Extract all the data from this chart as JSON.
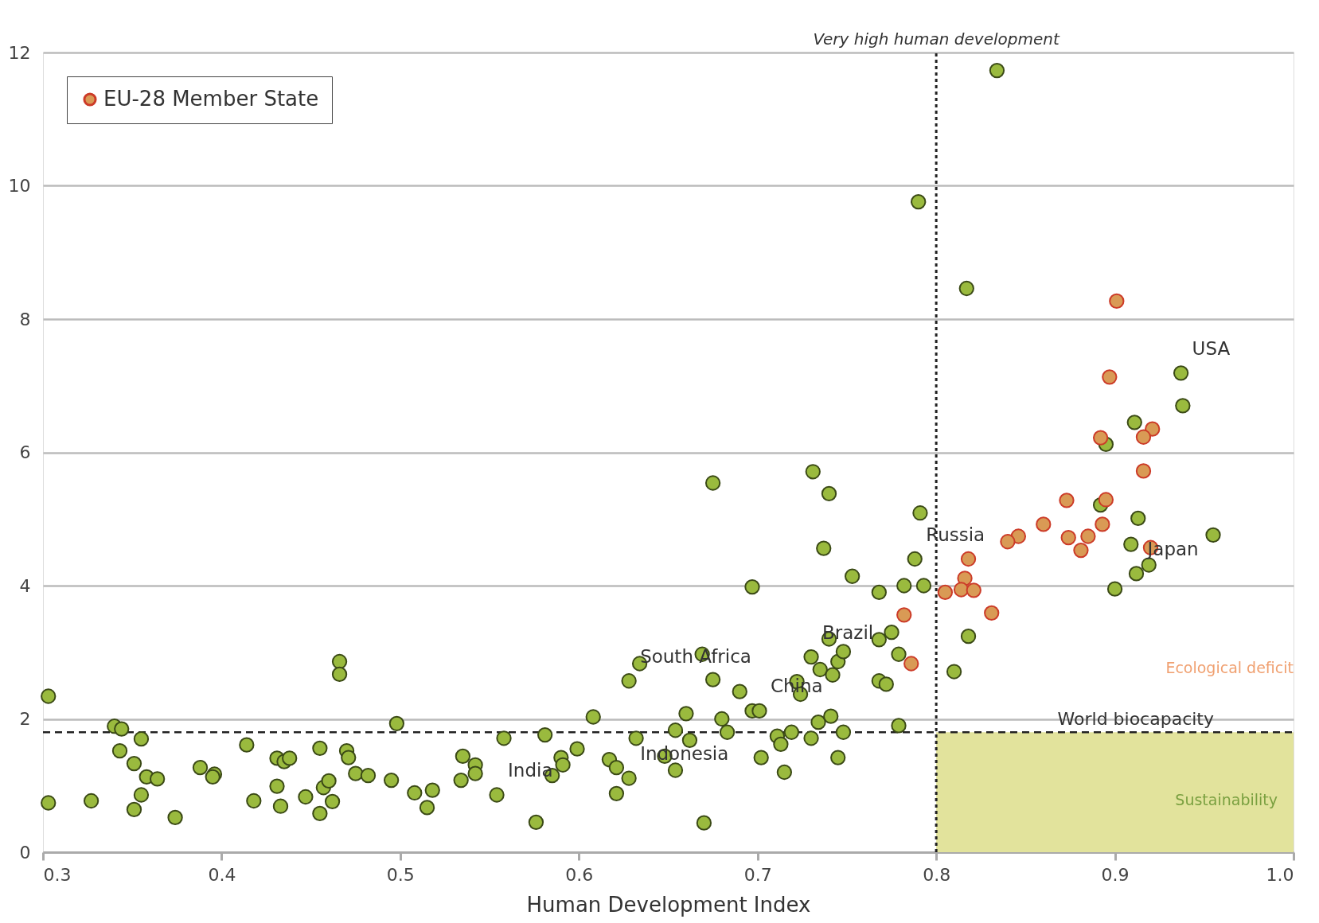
{
  "chart_data": {
    "type": "scatter",
    "xlabel": "Human Development Index",
    "xlim": [
      0.3,
      1.0
    ],
    "ylim": [
      0,
      12
    ],
    "xticks": [
      0.3,
      0.4,
      0.5,
      0.6,
      0.7,
      0.8,
      0.9,
      {
        "value": 1.0,
        "label": "1.0"
      }
    ],
    "yticks": [
      0,
      2,
      4,
      6,
      8,
      10,
      12
    ],
    "grid": "y",
    "legend": "top left",
    "marker": "circle",
    "series": [
      {
        "color": "#9aba3e",
        "x": [
          0.303,
          0.303,
          0.327,
          0.34,
          0.344,
          0.355,
          0.343,
          0.351,
          0.358,
          0.364,
          0.355,
          0.351,
          0.374,
          0.388,
          0.396,
          0.395,
          0.414,
          0.418,
          0.431,
          0.435,
          0.438,
          0.431,
          0.433,
          0.447,
          0.455,
          0.457,
          0.46,
          0.462,
          0.455,
          0.47,
          0.471,
          0.466,
          0.466,
          0.475,
          0.482,
          0.495,
          0.498,
          0.508,
          0.515,
          0.518,
          0.535,
          0.542,
          0.542,
          0.534,
          0.554,
          0.558,
          0.576,
          0.581,
          0.59,
          0.591,
          0.585,
          0.599,
          0.608,
          0.617,
          0.621,
          0.628,
          0.621,
          0.628,
          0.634,
          0.632,
          0.648,
          0.654,
          0.654,
          0.66,
          0.662,
          0.67,
          0.669,
          0.675,
          0.68,
          0.683,
          0.69,
          0.697,
          0.701,
          0.702,
          0.697,
          0.711,
          0.713,
          0.719,
          0.715,
          0.722,
          0.724,
          0.73,
          0.735,
          0.742,
          0.745,
          0.74,
          0.748,
          0.73,
          0.734,
          0.741,
          0.748,
          0.745,
          0.753,
          0.731,
          0.74,
          0.737,
          0.675,
          0.768,
          0.782,
          0.793,
          0.788,
          0.791,
          0.768,
          0.775,
          0.779,
          0.768,
          0.772,
          0.779,
          0.79,
          0.834,
          0.817,
          0.818,
          0.81,
          0.937,
          0.938,
          0.911,
          0.895,
          0.913,
          0.955,
          0.892,
          0.909,
          0.919,
          0.912,
          0.9
        ],
        "values": [
          2.34,
          0.74,
          0.77,
          1.89,
          1.85,
          1.7,
          1.52,
          1.33,
          1.13,
          1.1,
          0.86,
          0.64,
          0.52,
          1.27,
          1.17,
          1.13,
          1.61,
          0.77,
          1.41,
          1.36,
          1.41,
          0.99,
          0.69,
          0.83,
          1.56,
          0.97,
          1.07,
          0.76,
          0.58,
          1.52,
          1.42,
          2.86,
          2.67,
          1.18,
          1.15,
          1.08,
          1.93,
          0.89,
          0.67,
          0.93,
          1.44,
          1.31,
          1.18,
          1.08,
          0.86,
          1.71,
          0.45,
          1.76,
          1.42,
          1.31,
          1.15,
          1.55,
          2.03,
          1.39,
          1.27,
          1.11,
          0.88,
          2.57,
          2.83,
          1.71,
          1.44,
          1.23,
          1.83,
          2.08,
          1.68,
          0.44,
          2.97,
          2.59,
          2.0,
          1.8,
          2.41,
          2.12,
          2.12,
          1.42,
          3.98,
          1.74,
          1.62,
          1.8,
          1.2,
          2.56,
          2.37,
          2.93,
          2.74,
          2.66,
          2.86,
          3.2,
          3.01,
          1.71,
          1.95,
          2.04,
          1.8,
          1.42,
          4.14,
          5.71,
          5.38,
          4.56,
          5.54,
          3.9,
          4.0,
          4.0,
          4.4,
          5.09,
          3.19,
          3.3,
          2.97,
          2.57,
          2.52,
          1.9,
          9.76,
          11.73,
          8.46,
          3.24,
          2.71,
          7.19,
          6.7,
          6.45,
          6.12,
          5.01,
          4.76,
          5.21,
          4.62,
          4.31,
          4.18,
          3.95
        ]
      },
      {
        "name": "EU-28 Member State",
        "color": "#d99a55",
        "x": [
          0.897,
          0.901,
          0.921,
          0.916,
          0.892,
          0.916,
          0.873,
          0.895,
          0.86,
          0.893,
          0.846,
          0.84,
          0.874,
          0.885,
          0.881,
          0.92,
          0.818,
          0.816,
          0.814,
          0.821,
          0.805,
          0.831,
          0.782,
          0.786
        ],
        "values": [
          7.13,
          8.27,
          6.35,
          6.23,
          6.22,
          5.72,
          5.28,
          5.29,
          4.92,
          4.92,
          4.74,
          4.66,
          4.72,
          4.74,
          4.53,
          4.57,
          4.4,
          4.11,
          3.94,
          3.93,
          3.9,
          3.59,
          3.56,
          2.83
        ]
      }
    ],
    "ref_lines": [
      {
        "axis": "x",
        "value": 0.8,
        "label": "Very high human development",
        "line_style": "dotted",
        "color": "#222222"
      },
      {
        "axis": "y",
        "value": 1.8,
        "label": "World biocapacity",
        "line_style": "dashed",
        "color": "#222222"
      }
    ],
    "bands": [
      {
        "axis": "y",
        "from": 0,
        "to": 1.8,
        "label": "Sustainability",
        "color": "#e2e39c"
      }
    ],
    "annotations": [
      {
        "text": "USA",
        "x": 0.937,
        "y": 7.19
      },
      {
        "text": "Japan",
        "x": 0.912,
        "y": 4.18
      },
      {
        "text": "Russia",
        "x": 0.788,
        "y": 4.4
      },
      {
        "text": "Brazil",
        "x": 0.73,
        "y": 2.93
      },
      {
        "text": "China",
        "x": 0.701,
        "y": 2.12
      },
      {
        "text": "South Africa",
        "x": 0.628,
        "y": 2.57
      },
      {
        "text": "Indonesia",
        "x": 0.628,
        "y": 1.11
      },
      {
        "text": "India",
        "x": 0.554,
        "y": 0.86
      },
      "Ecological deficit"
    ]
  }
}
